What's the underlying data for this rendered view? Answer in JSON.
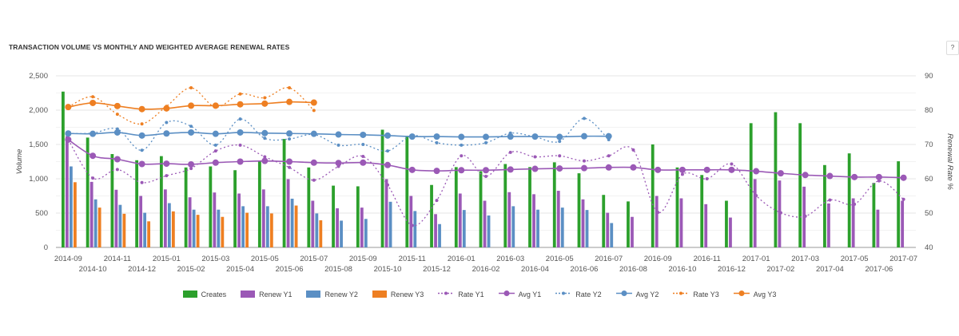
{
  "title": "TRANSACTION VOLUME VS MONTHLY AND WEIGHTED AVERAGE RENEWAL RATES",
  "help_label": "?",
  "chart_data": {
    "type": "bar",
    "title": "TRANSACTION VOLUME VS MONTHLY AND WEIGHTED AVERAGE RENEWAL RATES",
    "categories": [
      "2014-09",
      "2014-10",
      "2014-11",
      "2014-12",
      "2015-01",
      "2015-02",
      "2015-03",
      "2015-04",
      "2015-05",
      "2015-06",
      "2015-07",
      "2015-08",
      "2015-09",
      "2015-10",
      "2015-11",
      "2015-12",
      "2016-01",
      "2016-02",
      "2016-03",
      "2016-04",
      "2016-05",
      "2016-06",
      "2016-07",
      "2016-08",
      "2016-09",
      "2016-10",
      "2016-11",
      "2016-12",
      "2017-01",
      "2017-02",
      "2017-03",
      "2017-04",
      "2017-05",
      "2017-06",
      "2017-07"
    ],
    "ylabel": "Volume",
    "ylim": [
      0,
      2500
    ],
    "yticks": [
      "0",
      "500",
      "1,000",
      "1,500",
      "2,000",
      "2,500"
    ],
    "y2label": "Renewal Rate %",
    "y2lim": [
      40,
      90
    ],
    "y2ticks": [
      "40",
      "50",
      "60",
      "70",
      "80",
      "90"
    ],
    "grid": true,
    "legend": "bottom",
    "series": [
      {
        "name": "Creates",
        "kind": "bar",
        "axis": "left",
        "color": "#2ca02c",
        "values": [
          2270,
          1600,
          1360,
          1270,
          1330,
          1165,
          1180,
          1125,
          1260,
          1580,
          1165,
          900,
          890,
          1715,
          1615,
          910,
          1170,
          1110,
          1215,
          1170,
          1240,
          1080,
          765,
          670,
          1500,
          1165,
          1055,
          680,
          1810,
          1970,
          1810,
          1200,
          1370,
          940,
          1255
        ]
      },
      {
        "name": "Renew Y1",
        "kind": "bar",
        "axis": "left",
        "color": "#9b59b6",
        "values": [
          1620,
          955,
          840,
          750,
          845,
          730,
          800,
          785,
          845,
          995,
          680,
          570,
          580,
          995,
          750,
          485,
          785,
          680,
          805,
          775,
          825,
          700,
          505,
          445,
          750,
          715,
          630,
          435,
          995,
          975,
          885,
          640,
          715,
          550,
          680
        ]
      },
      {
        "name": "Renew Y2",
        "kind": "bar",
        "axis": "left",
        "color": "#5b8fc4",
        "values": [
          1180,
          700,
          620,
          505,
          645,
          550,
          550,
          600,
          600,
          710,
          495,
          390,
          415,
          665,
          530,
          340,
          545,
          465,
          600,
          550,
          580,
          545,
          355,
          null,
          null,
          null,
          null,
          null,
          null,
          null,
          null,
          null,
          null,
          null,
          null
        ]
      },
      {
        "name": "Renew Y3",
        "kind": "bar",
        "axis": "left",
        "color": "#ee7f22",
        "values": [
          950,
          580,
          490,
          380,
          525,
          475,
          445,
          505,
          495,
          610,
          395,
          null,
          null,
          null,
          null,
          null,
          null,
          null,
          null,
          null,
          null,
          null,
          null,
          null,
          null,
          null,
          null,
          null,
          null,
          null,
          null,
          null,
          null,
          null,
          null
        ]
      },
      {
        "name": "Rate Y1",
        "kind": "dashed-line",
        "axis": "right",
        "color": "#9b59b6",
        "values": [
          71.4,
          60.2,
          62.7,
          58.9,
          60.9,
          63.0,
          68.1,
          69.8,
          66.4,
          63.3,
          59.6,
          63.6,
          66.5,
          58.2,
          46.4,
          53.7,
          66.7,
          60.7,
          67.7,
          66.4,
          66.7,
          65.2,
          66.7,
          68.4,
          50.2,
          61.3,
          60.0,
          64.3,
          55.1,
          50.1,
          49.1,
          53.8,
          52.6,
          59.4,
          54.0
        ]
      },
      {
        "name": "Avg Y1",
        "kind": "line",
        "axis": "right",
        "color": "#9b59b6",
        "values": [
          71.4,
          66.7,
          65.7,
          64.3,
          64.4,
          64.2,
          64.7,
          65.0,
          65.2,
          65.0,
          64.7,
          64.6,
          64.7,
          64.0,
          62.6,
          62.3,
          62.5,
          62.5,
          62.7,
          62.9,
          63.0,
          63.1,
          63.3,
          63.3,
          62.6,
          62.6,
          62.6,
          62.6,
          62.2,
          61.6,
          61.1,
          60.8,
          60.5,
          60.5,
          60.3
        ]
      },
      {
        "name": "Rate Y2",
        "kind": "dashed-line",
        "axis": "right",
        "color": "#5b8fc4",
        "values": [
          73.2,
          73.3,
          74.5,
          68.3,
          76.4,
          75.3,
          69.8,
          77.4,
          71.8,
          71.6,
          72.9,
          69.8,
          70.0,
          68.1,
          72.6,
          70.5,
          69.8,
          70.5,
          73.3,
          72.2,
          70.9,
          77.6,
          71.4,
          null,
          null,
          null,
          null,
          null,
          null,
          null,
          null,
          null,
          null,
          null,
          null
        ]
      },
      {
        "name": "Avg Y2",
        "kind": "line",
        "axis": "right",
        "color": "#5b8fc4",
        "values": [
          73.2,
          73.1,
          73.5,
          72.6,
          73.2,
          73.5,
          73.1,
          73.5,
          73.3,
          73.2,
          73.1,
          72.9,
          72.8,
          72.6,
          72.3,
          72.3,
          72.2,
          72.2,
          72.3,
          72.3,
          72.2,
          72.4,
          72.4,
          null,
          null,
          null,
          null,
          null,
          null,
          null,
          null,
          null,
          null,
          null,
          null
        ]
      },
      {
        "name": "Rate Y3",
        "kind": "dashed-line",
        "axis": "right",
        "color": "#ee7f22",
        "values": [
          80.9,
          83.9,
          78.8,
          76.0,
          81.1,
          86.5,
          80.9,
          84.7,
          83.6,
          86.5,
          79.9,
          null,
          null,
          null,
          null,
          null,
          null,
          null,
          null,
          null,
          null,
          null,
          null,
          null,
          null,
          null,
          null,
          null,
          null,
          null,
          null,
          null,
          null,
          null,
          null
        ]
      },
      {
        "name": "Avg Y3",
        "kind": "line",
        "axis": "right",
        "color": "#ee7f22",
        "values": [
          80.9,
          82.1,
          81.2,
          80.3,
          80.5,
          81.3,
          81.3,
          81.7,
          81.9,
          82.4,
          82.2,
          null,
          null,
          null,
          null,
          null,
          null,
          null,
          null,
          null,
          null,
          null,
          null,
          null,
          null,
          null,
          null,
          null,
          null,
          null,
          null,
          null,
          null,
          null,
          null
        ]
      }
    ]
  }
}
